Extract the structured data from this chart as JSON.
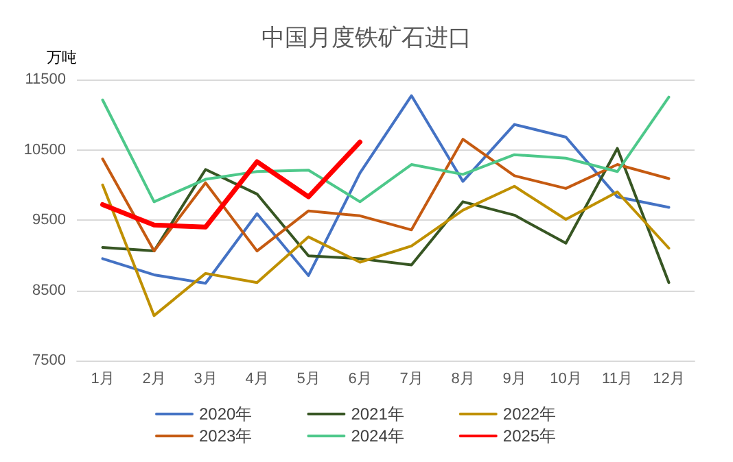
{
  "chart_data": {
    "type": "line",
    "title": "中国月度铁矿石进口",
    "ylabel": "万吨",
    "categories": [
      "1月",
      "2月",
      "3月",
      "4月",
      "5月",
      "6月",
      "7月",
      "8月",
      "9月",
      "10月",
      "11月",
      "12月"
    ],
    "series": [
      {
        "name": "2020年",
        "color": "#4472c4",
        "values": [
          8950,
          8720,
          8600,
          9590,
          8710,
          10170,
          11270,
          10050,
          10860,
          10680,
          9830,
          9680
        ]
      },
      {
        "name": "2021年",
        "color": "#375623",
        "values": [
          9110,
          9060,
          10220,
          9870,
          8990,
          8950,
          8860,
          9760,
          9570,
          9170,
          10520,
          8610
        ]
      },
      {
        "name": "2022年",
        "color": "#bf9000",
        "values": [
          10000,
          8140,
          8740,
          8610,
          9260,
          8900,
          9130,
          9640,
          9980,
          9510,
          9900,
          9100
        ]
      },
      {
        "name": "2023年",
        "color": "#c55a11",
        "values": [
          10370,
          9060,
          10030,
          9060,
          9630,
          9560,
          9360,
          10650,
          10130,
          9950,
          10290,
          10090
        ]
      },
      {
        "name": "2024年",
        "color": "#4dc88a",
        "values": [
          11210,
          9760,
          10080,
          10190,
          10210,
          9760,
          10290,
          10150,
          10430,
          10380,
          10190,
          11250
        ]
      },
      {
        "name": "2025年",
        "color": "#ff0000",
        "values": [
          9720,
          9430,
          9400,
          10330,
          9830,
          10610,
          null,
          null,
          null,
          null,
          null,
          null
        ]
      }
    ],
    "ylim": [
      7500,
      11500
    ],
    "yticks": [
      7500,
      8500,
      9500,
      10500,
      11500
    ],
    "grid": "y",
    "legend": "bottom",
    "marker": "none",
    "line_style": "solid"
  }
}
